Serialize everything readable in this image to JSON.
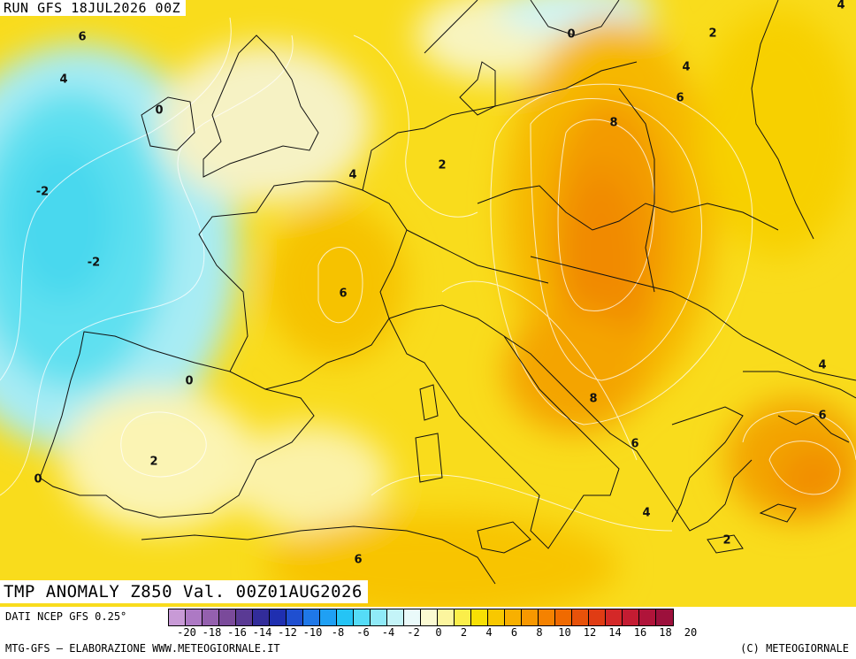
{
  "header": {
    "run_label": "RUN GFS 18JUL2026 00Z",
    "title": "TMP ANOMALY Z850 Val. 00Z01AUG2026"
  },
  "map": {
    "contour_labels": [
      "6",
      "4",
      "0",
      "-2",
      "-2",
      "0",
      "0",
      "2",
      "4",
      "2",
      "6",
      "8",
      "2",
      "4",
      "6",
      "6",
      "8",
      "6",
      "4",
      "0",
      "2",
      "4",
      "6",
      "2",
      "4"
    ]
  },
  "footer": {
    "data_source": "DATI NCEP GFS 0.25°",
    "credit": "MTG-GFS – ELABORAZIONE WWW.METEOGIORNALE.IT",
    "copyright": "(C) METEOGIORNALE"
  },
  "colorbar": {
    "colors": [
      "#c89ad6",
      "#ad79c4",
      "#9460ae",
      "#7a4a9a",
      "#5a3a94",
      "#322c9a",
      "#1f2fb0",
      "#1f4fd0",
      "#1f78e8",
      "#1fa0f4",
      "#25c4f5",
      "#55dcf7",
      "#8feaf8",
      "#c4f4f8",
      "#eafafa",
      "#fbfad2",
      "#fcf59e",
      "#fbee4a",
      "#f8e004",
      "#f8c800",
      "#f8b000",
      "#f89800",
      "#f58200",
      "#f06a00",
      "#e8520a",
      "#e03c14",
      "#d42828",
      "#c41c32",
      "#b0143a",
      "#9c103c"
    ],
    "tick_labels": [
      "-20",
      "-18",
      "-16",
      "-14",
      "-12",
      "-10",
      "-8",
      "-6",
      "-4",
      "-2",
      "0",
      "2",
      "4",
      "6",
      "8",
      "10",
      "12",
      "14",
      "16",
      "18",
      "20"
    ]
  }
}
